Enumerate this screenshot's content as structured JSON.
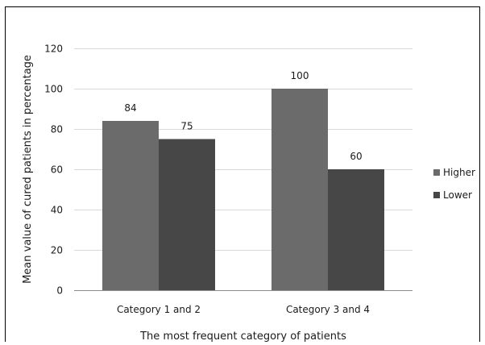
{
  "chart_data": {
    "type": "bar",
    "title": "",
    "xlabel": "The most frequent category of patients",
    "ylabel": "Mean value of cured patients in percentage",
    "categories": [
      "Category 1 and 2",
      "Category 3 and 4"
    ],
    "series": [
      {
        "name": "Higher",
        "values": [
          84,
          100
        ],
        "color": "#6b6b6b"
      },
      {
        "name": "Lower",
        "values": [
          75,
          60
        ],
        "color": "#474747"
      }
    ],
    "ylim": [
      0,
      120
    ],
    "yticks": [
      "0",
      "20",
      "40",
      "60",
      "80",
      "100",
      "120"
    ],
    "data_labels": [
      [
        "84",
        "100"
      ],
      [
        "75",
        "60"
      ]
    ],
    "grid": true,
    "legend_position": "right"
  }
}
